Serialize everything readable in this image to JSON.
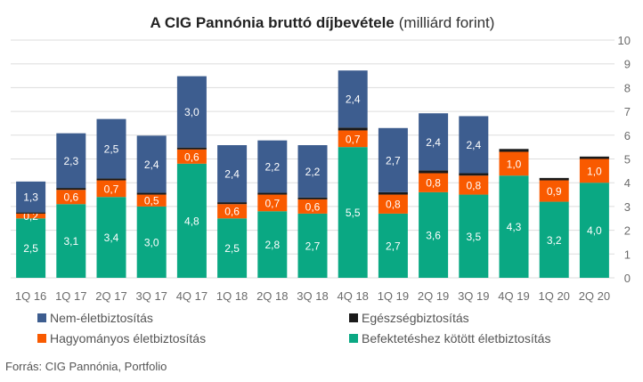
{
  "chart_data": {
    "type": "bar",
    "stacked": true,
    "title": "A CIG Pannónia bruttó díjbevétele",
    "title_suffix": "(milliárd forint)",
    "categories": [
      "1Q 16",
      "1Q 17",
      "2Q 17",
      "3Q 17",
      "4Q 17",
      "1Q 18",
      "2Q 18",
      "3Q 18",
      "4Q 18",
      "1Q 19",
      "2Q 19",
      "3Q 19",
      "4Q 19",
      "1Q 20",
      "2Q 20"
    ],
    "series": [
      {
        "name": "Befektetéshez kötött életbiztosítás",
        "color": "#0aa883",
        "values": [
          2.5,
          3.1,
          3.4,
          3.0,
          4.8,
          2.5,
          2.8,
          2.7,
          5.5,
          2.7,
          3.6,
          3.5,
          4.3,
          3.2,
          4.0
        ],
        "labels": [
          "2,5",
          "3,1",
          "3,4",
          "3,0",
          "4,8",
          "2,5",
          "2,8",
          "2,7",
          "5,5",
          "2,7",
          "3,6",
          "3,5",
          "4,3",
          "3,2",
          "4,0"
        ]
      },
      {
        "name": "Hagyományos életbiztosítás",
        "color": "#f95a00",
        "values": [
          0.2,
          0.6,
          0.7,
          0.5,
          0.6,
          0.6,
          0.7,
          0.6,
          0.7,
          0.8,
          0.8,
          0.8,
          1.0,
          0.9,
          1.0
        ],
        "labels": [
          "0,2",
          "0,6",
          "0,7",
          "0,5",
          "0,6",
          "0,6",
          "0,7",
          "0,6",
          "0,7",
          "0,8",
          "0,8",
          "0,8",
          "1,0",
          "0,9",
          "1,0"
        ]
      },
      {
        "name": "Egészségbiztosítás",
        "color": "#1a1a1a",
        "values": [
          0.05,
          0.08,
          0.08,
          0.08,
          0.08,
          0.08,
          0.08,
          0.08,
          0.12,
          0.1,
          0.12,
          0.1,
          0.12,
          0.1,
          0.1
        ],
        "labels": [
          "",
          "",
          "",
          "",
          "",
          "",
          "",
          "",
          "",
          "",
          "",
          "",
          "",
          "",
          ""
        ]
      },
      {
        "name": "Nem-életbiztosítás",
        "color": "#3d5d8f",
        "values": [
          1.3,
          2.3,
          2.5,
          2.4,
          3.0,
          2.4,
          2.2,
          2.2,
          2.4,
          2.7,
          2.4,
          2.4,
          0.0,
          0.0,
          0.0
        ],
        "labels": [
          "1,3",
          "2,3",
          "2,5",
          "2,4",
          "3,0",
          "2,4",
          "2,2",
          "2,2",
          "2,4",
          "2,7",
          "2,4",
          "2,4",
          "",
          "",
          ""
        ]
      }
    ],
    "ylim": [
      0,
      10
    ],
    "yticks": [
      "0",
      "1",
      "2",
      "3",
      "4",
      "5",
      "6",
      "7",
      "8",
      "9",
      "10"
    ],
    "y_axis_side": "right",
    "grid": true,
    "legend": {
      "placement": "bottom",
      "order": [
        "Nem-életbiztosítás",
        "Egészségbiztosítás",
        "Hagyományos életbiztosítás",
        "Befektetéshez kötött életbiztosítás"
      ]
    }
  },
  "source": "Forrás:  CIG Pannónia, Portfolio"
}
